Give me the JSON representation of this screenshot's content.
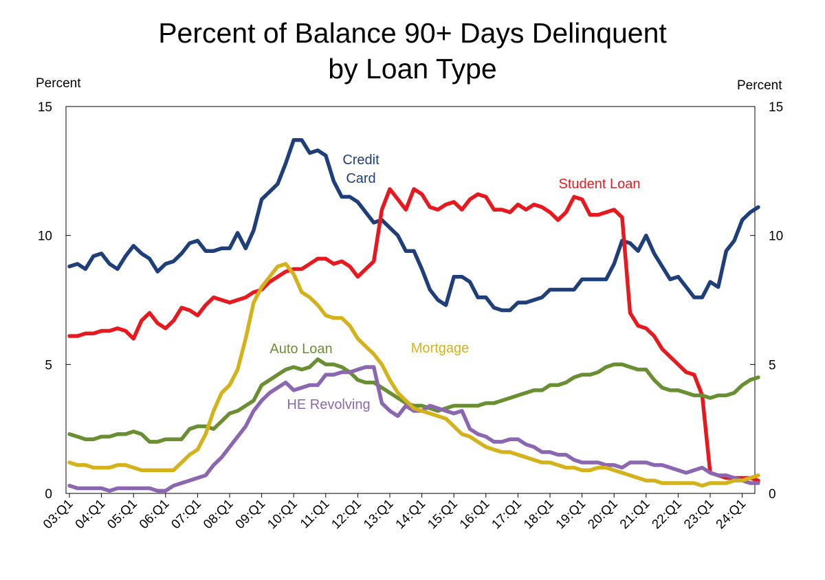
{
  "chart_data": {
    "type": "line",
    "title": "Percent of Balance 90+ Days Delinquent",
    "subtitle": "by Loan Type",
    "y_unit_left": "Percent",
    "y_unit_right": "Percent",
    "ylim": [
      0,
      15
    ],
    "y_ticks": [
      0,
      5,
      10,
      15
    ],
    "x_tick_labels": [
      "03:Q1",
      "04:Q1",
      "05:Q1",
      "06:Q1",
      "07:Q1",
      "08:Q1",
      "09:Q1",
      "10:Q1",
      "11:Q1",
      "12:Q1",
      "13:Q1",
      "14:Q1",
      "15:Q1",
      "16:Q1",
      "17:Q1",
      "18:Q1",
      "19:Q1",
      "20:Q1",
      "21:Q1",
      "22:Q1",
      "23:Q1",
      "24:Q1"
    ],
    "x_start": 2003.0,
    "quarter_step": 0.25,
    "grid": false,
    "series": [
      {
        "name": "Credit Card",
        "label_lines": [
          "Credit",
          "Card"
        ],
        "color": "#1f3f7a",
        "values": [
          8.8,
          8.9,
          8.7,
          9.2,
          9.3,
          8.9,
          8.7,
          9.2,
          9.6,
          9.3,
          9.1,
          8.6,
          8.9,
          9.0,
          9.3,
          9.7,
          9.8,
          9.4,
          9.4,
          9.5,
          9.5,
          10.1,
          9.5,
          10.2,
          11.4,
          11.7,
          12.0,
          12.8,
          13.7,
          13.7,
          13.2,
          13.3,
          13.1,
          12.1,
          11.5,
          11.5,
          11.3,
          10.9,
          10.5,
          10.6,
          10.3,
          10.0,
          9.4,
          9.4,
          8.7,
          7.9,
          7.5,
          7.3,
          8.4,
          8.4,
          8.2,
          7.6,
          7.6,
          7.2,
          7.1,
          7.1,
          7.4,
          7.4,
          7.5,
          7.6,
          7.9,
          7.9,
          7.9,
          7.9,
          8.3,
          8.3,
          8.3,
          8.3,
          8.9,
          9.8,
          9.7,
          9.4,
          10.0,
          9.3,
          8.8,
          8.3,
          8.4,
          8.0,
          7.6,
          7.6,
          8.2,
          8.0,
          9.4,
          9.8,
          10.6,
          10.9,
          11.1
        ]
      },
      {
        "name": "Student Loan",
        "color": "#e8191e",
        "values": [
          6.1,
          6.1,
          6.2,
          6.2,
          6.3,
          6.3,
          6.4,
          6.3,
          6.0,
          6.7,
          7.0,
          6.6,
          6.4,
          6.7,
          7.2,
          7.1,
          6.9,
          7.3,
          7.6,
          7.5,
          7.4,
          7.5,
          7.6,
          7.8,
          7.9,
          8.2,
          8.4,
          8.6,
          8.7,
          8.7,
          8.9,
          9.1,
          9.1,
          8.9,
          9.0,
          8.8,
          8.4,
          8.7,
          9.0,
          11.0,
          11.8,
          11.4,
          11.0,
          11.8,
          11.6,
          11.1,
          11.0,
          11.2,
          11.3,
          11.0,
          11.4,
          11.6,
          11.5,
          11.0,
          11.0,
          10.9,
          11.2,
          11.0,
          11.2,
          11.1,
          10.9,
          10.6,
          10.9,
          11.5,
          11.4,
          10.8,
          10.8,
          10.9,
          11.0,
          10.7,
          7.0,
          6.5,
          6.4,
          6.1,
          5.6,
          5.3,
          5.0,
          4.7,
          4.6,
          3.8,
          0.8,
          0.7,
          0.6,
          0.6,
          0.6,
          0.6,
          0.5
        ]
      },
      {
        "name": "Mortgage",
        "color": "#d4b21c",
        "values": [
          1.2,
          1.1,
          1.1,
          1.0,
          1.0,
          1.0,
          1.1,
          1.1,
          1.0,
          0.9,
          0.9,
          0.9,
          0.9,
          0.9,
          1.2,
          1.5,
          1.7,
          2.3,
          3.2,
          3.9,
          4.2,
          4.8,
          6.0,
          7.4,
          8.0,
          8.4,
          8.8,
          8.9,
          8.5,
          7.8,
          7.6,
          7.3,
          6.9,
          6.8,
          6.8,
          6.5,
          6.0,
          5.7,
          5.4,
          5.0,
          4.4,
          3.9,
          3.6,
          3.3,
          3.2,
          3.1,
          3.0,
          2.9,
          2.6,
          2.3,
          2.2,
          2.0,
          1.8,
          1.7,
          1.6,
          1.6,
          1.5,
          1.4,
          1.3,
          1.2,
          1.2,
          1.1,
          1.0,
          1.0,
          0.9,
          0.9,
          1.0,
          1.0,
          0.9,
          0.8,
          0.7,
          0.6,
          0.5,
          0.5,
          0.4,
          0.4,
          0.4,
          0.4,
          0.4,
          0.3,
          0.4,
          0.4,
          0.4,
          0.5,
          0.5,
          0.6,
          0.7
        ]
      },
      {
        "name": "Auto Loan",
        "color": "#6a8f33",
        "values": [
          2.3,
          2.2,
          2.1,
          2.1,
          2.2,
          2.2,
          2.3,
          2.3,
          2.4,
          2.3,
          2.0,
          2.0,
          2.1,
          2.1,
          2.1,
          2.5,
          2.6,
          2.6,
          2.5,
          2.8,
          3.1,
          3.2,
          3.4,
          3.6,
          4.2,
          4.4,
          4.6,
          4.8,
          4.9,
          4.8,
          4.9,
          5.2,
          5.0,
          5.0,
          4.9,
          4.7,
          4.4,
          4.3,
          4.3,
          4.1,
          3.9,
          3.7,
          3.5,
          3.4,
          3.4,
          3.3,
          3.2,
          3.3,
          3.4,
          3.4,
          3.4,
          3.4,
          3.5,
          3.5,
          3.6,
          3.7,
          3.8,
          3.9,
          4.0,
          4.0,
          4.2,
          4.2,
          4.3,
          4.5,
          4.6,
          4.6,
          4.7,
          4.9,
          5.0,
          5.0,
          4.9,
          4.8,
          4.8,
          4.4,
          4.1,
          4.0,
          4.0,
          3.9,
          3.8,
          3.8,
          3.7,
          3.8,
          3.8,
          3.9,
          4.2,
          4.4,
          4.5
        ]
      },
      {
        "name": "HE Revolving",
        "color": "#8a67b0",
        "values": [
          0.3,
          0.2,
          0.2,
          0.2,
          0.2,
          0.1,
          0.2,
          0.2,
          0.2,
          0.2,
          0.2,
          0.1,
          0.1,
          0.3,
          0.4,
          0.5,
          0.6,
          0.7,
          1.1,
          1.4,
          1.8,
          2.2,
          2.6,
          3.2,
          3.6,
          3.9,
          4.1,
          4.3,
          4.0,
          4.1,
          4.2,
          4.2,
          4.6,
          4.6,
          4.7,
          4.7,
          4.8,
          4.9,
          4.9,
          3.5,
          3.2,
          3.0,
          3.4,
          3.2,
          3.2,
          3.4,
          3.3,
          3.2,
          3.1,
          3.2,
          2.5,
          2.3,
          2.2,
          2.0,
          2.0,
          2.1,
          2.1,
          1.9,
          1.8,
          1.6,
          1.6,
          1.5,
          1.5,
          1.3,
          1.2,
          1.2,
          1.2,
          1.1,
          1.1,
          1.0,
          1.2,
          1.2,
          1.2,
          1.1,
          1.1,
          1.0,
          0.9,
          0.8,
          0.9,
          1.0,
          0.8,
          0.7,
          0.7,
          0.6,
          0.5,
          0.4,
          0.4
        ]
      }
    ],
    "annotations": []
  }
}
